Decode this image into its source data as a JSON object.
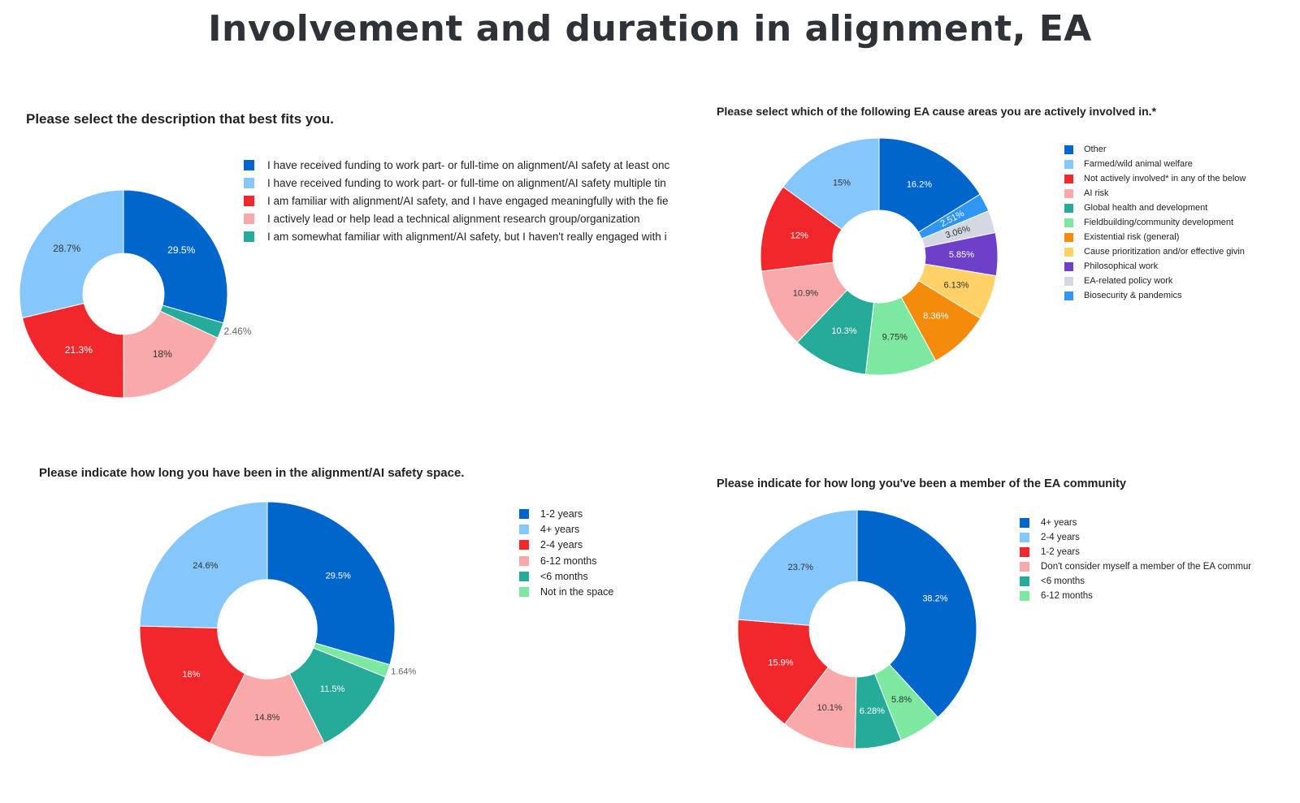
{
  "page": {
    "title": "Involvement and duration in alignment, EA"
  },
  "chart_data": [
    {
      "type": "pie",
      "title": "Please select the description that best fits you.",
      "legend_position": "right",
      "categories": [
        "I have received funding to work part- or full-time on alignment/AI safety at least once",
        "I have received funding to work part- or full-time on alignment/AI safety multiple times",
        "I am familiar with alignment/AI safety, and I have engaged meaningfully with the field",
        "I actively lead or help lead a technical alignment research group/organization",
        "I am somewhat familiar with alignment/AI safety, but I haven't really engaged with it"
      ],
      "legend_labels": [
        "I have received funding to work part- or full-time on alignment/AI safety at least onc",
        "I have received funding to work part- or full-time on alignment/AI safety multiple tin",
        "I am familiar with alignment/AI safety, and I have engaged meaningfully with the fie",
        "I actively lead or help lead a technical alignment research group/organization",
        "I am somewhat familiar with alignment/AI safety, but I haven't really engaged with i"
      ],
      "values": [
        29.5,
        28.7,
        21.3,
        18,
        2.46
      ],
      "labels": [
        "29.5%",
        "28.7%",
        "21.3%",
        "18%",
        "2.46%"
      ],
      "colors": [
        "#0066cc",
        "#85c6fb",
        "#f2272b",
        "#f9a9a9",
        "#26aa99"
      ],
      "slice_order": [
        0,
        4,
        3,
        2,
        1
      ]
    },
    {
      "type": "pie",
      "title": "Please select which of the following EA cause areas you are actively involved in.*",
      "legend_position": "right",
      "categories": [
        "Other",
        "Farmed/wild animal welfare",
        "Not actively involved* in any of the below",
        "AI risk",
        "Global health and development",
        "Fieldbuilding/community development",
        "Existential risk (general)",
        "Cause prioritization and/or effective giving",
        "Philosophical work",
        "EA-related policy work",
        "Biosecurity & pandemics"
      ],
      "legend_labels": [
        "Other",
        "Farmed/wild animal welfare",
        "Not actively involved* in any of the below",
        "AI risk",
        "Global health and development",
        "Fieldbuilding/community development",
        "Existential risk (general)",
        "Cause prioritization and/or effective givin",
        "Philosophical work",
        "EA-related policy work",
        "Biosecurity & pandemics"
      ],
      "values": [
        16.2,
        15,
        12,
        10.9,
        10.3,
        9.75,
        8.36,
        6.13,
        5.85,
        3.06,
        2.51
      ],
      "labels": [
        "16.2%",
        "15%",
        "12%",
        "10.9%",
        "10.3%",
        "9.75%",
        "8.36%",
        "6.13%",
        "5.85%",
        "3.06%",
        "2.51%"
      ],
      "colors": [
        "#0066cc",
        "#85c6fb",
        "#f2272b",
        "#f9a9a9",
        "#26aa99",
        "#7ce8a0",
        "#f58b0a",
        "#ffd166",
        "#6e3fc9",
        "#d4d8e2",
        "#2f96f3"
      ],
      "slice_order": [
        0,
        10,
        9,
        8,
        7,
        6,
        5,
        4,
        3,
        2,
        1
      ]
    },
    {
      "type": "pie",
      "title": "Please indicate how long you have been in the alignment/AI safety space.",
      "legend_position": "right",
      "categories": [
        "1-2 years",
        "4+ years",
        "2-4 years",
        "6-12 months",
        "<6 months",
        "Not in the space"
      ],
      "legend_labels": [
        "1-2 years",
        "4+ years",
        "2-4 years",
        "6-12 months",
        "<6 months",
        "Not in the space"
      ],
      "values": [
        29.5,
        24.6,
        18,
        14.8,
        11.5,
        1.64
      ],
      "labels": [
        "29.5%",
        "24.6%",
        "18%",
        "14.8%",
        "11.5%",
        "1.64%"
      ],
      "colors": [
        "#0066cc",
        "#85c6fb",
        "#f2272b",
        "#f9a9a9",
        "#26aa99",
        "#7ce8a0"
      ],
      "slice_order": [
        0,
        5,
        4,
        3,
        2,
        1
      ]
    },
    {
      "type": "pie",
      "title": "Please indicate for how long you've been a member of the EA community",
      "legend_position": "right",
      "categories": [
        "4+ years",
        "2-4 years",
        "1-2 years",
        "Don't consider myself a member of the EA community",
        "<6 months",
        "6-12 months"
      ],
      "legend_labels": [
        "4+ years",
        "2-4 years",
        "1-2 years",
        "Don't consider myself a member of the EA commun",
        "<6 months",
        "6-12 months"
      ],
      "values": [
        38.2,
        23.7,
        15.9,
        10.1,
        6.28,
        5.8
      ],
      "labels": [
        "38.2%",
        "23.7%",
        "15.9%",
        "10.1%",
        "6.28%",
        "5.8%"
      ],
      "colors": [
        "#0066cc",
        "#85c6fb",
        "#f2272b",
        "#f9a9a9",
        "#26aa99",
        "#7ce8a0"
      ],
      "slice_order": [
        0,
        5,
        4,
        3,
        2,
        1
      ]
    }
  ]
}
